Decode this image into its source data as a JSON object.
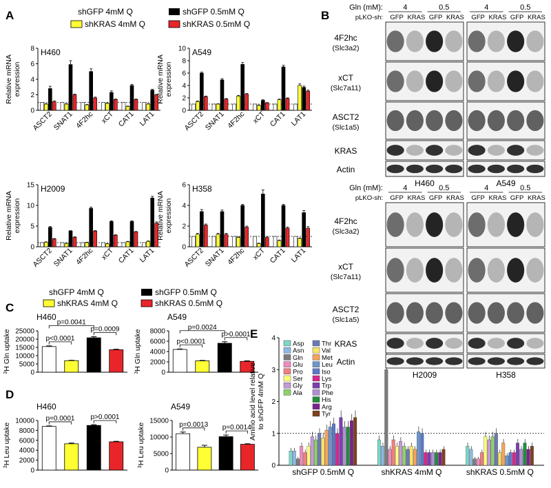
{
  "panels": {
    "A": {
      "label": "A",
      "legend": [
        "shGFP 4mM Q",
        "shGFP 0.5mM Q",
        "shKRAS 4mM Q",
        "shKRAS 0.5mM Q"
      ],
      "ylabel": [
        "Relative mRNA",
        "expression"
      ],
      "genes": [
        "ASCT2",
        "SNAT1",
        "4F2hc",
        "xCT",
        "CAT1",
        "LAT1"
      ]
    },
    "B": {
      "label": "B"
    },
    "C": {
      "label": "C",
      "legend": [
        "shGFP 4mM Q",
        "shGFP 0.5mM Q",
        "shKRAS 4mM Q",
        "shKRAS 0.5mM Q"
      ],
      "ylabel_sup": "3",
      "ylabel": "H Gln uptake"
    },
    "D": {
      "label": "D",
      "ylabel_sup": "3",
      "ylabel": "H Leu uptake"
    },
    "E": {
      "label": "E",
      "ylabel": [
        "Amino acid level relative",
        "to shGFP 4mM Q"
      ],
      "groups": [
        "shGFP 0.5mM Q",
        "shKRAS 4mM Q",
        "shKRAS 0.5mM Q"
      ]
    }
  },
  "chart_data": [
    {
      "type": "bar",
      "cell": "H460",
      "categories": [
        "ASCT2",
        "SNAT1",
        "4F2hc",
        "xCT",
        "CAT1",
        "LAT1"
      ],
      "series": [
        {
          "name": "shGFP 4mM Q",
          "values": [
            1,
            1,
            1,
            1,
            1,
            1
          ]
        },
        {
          "name": "shKRAS 4mM Q",
          "values": [
            0.8,
            0.8,
            0.7,
            0.9,
            0.5,
            0.8
          ]
        },
        {
          "name": "shGFP 0.5mM Q",
          "values": [
            2.8,
            5.9,
            5.0,
            2.3,
            3.2,
            2.6
          ]
        },
        {
          "name": "shKRAS 0.5mM Q",
          "values": [
            1.1,
            2.0,
            1.6,
            1.4,
            1.4,
            2.0
          ]
        }
      ],
      "errors": [
        [
          0,
          0.05,
          0.3,
          0.1
        ],
        [
          0,
          0.05,
          0.5,
          0.1
        ],
        [
          0,
          0.05,
          0.35,
          0.1
        ],
        [
          0,
          0.05,
          0.2,
          0.05
        ],
        [
          0,
          0.05,
          0.15,
          0.05
        ],
        [
          0,
          0.05,
          0.1,
          0.05
        ]
      ],
      "ylim": [
        0,
        8
      ],
      "yticks": [
        0,
        2,
        4,
        6,
        8
      ],
      "dashed": 1
    },
    {
      "type": "bar",
      "cell": "A549",
      "categories": [
        "ASCT2",
        "SNAT1",
        "4F2hc",
        "xCT",
        "CAT1",
        "LAT1"
      ],
      "series": [
        {
          "name": "shGFP 4mM Q",
          "values": [
            1,
            1,
            1,
            1,
            1,
            1
          ]
        },
        {
          "name": "shKRAS 4mM Q",
          "values": [
            1.4,
            1.0,
            2.3,
            0.8,
            1.7,
            4.0
          ]
        },
        {
          "name": "shGFP 0.5mM Q",
          "values": [
            6.0,
            4.9,
            7.4,
            1.6,
            7.0,
            3.7
          ]
        },
        {
          "name": "shKRAS 0.5mM Q",
          "values": [
            2.2,
            1.8,
            2.6,
            1.2,
            1.9,
            3.1
          ]
        }
      ],
      "errors": [
        [
          0,
          0.1,
          0.15,
          0.1
        ],
        [
          0,
          0.05,
          0.2,
          0.1
        ],
        [
          0,
          0.1,
          0.3,
          0.1
        ],
        [
          0,
          0.05,
          0.1,
          0.05
        ],
        [
          0,
          0.1,
          0.25,
          0.1
        ],
        [
          0,
          0.25,
          0.2,
          0.15
        ]
      ],
      "ylim": [
        0,
        10
      ],
      "yticks": [
        0,
        2,
        4,
        6,
        8,
        10
      ],
      "dashed": 1
    },
    {
      "type": "bar",
      "cell": "H2009",
      "categories": [
        "ASCT2",
        "SNAT1",
        "4F2hc",
        "xCT",
        "CAT1",
        "LAT1"
      ],
      "series": [
        {
          "name": "shGFP 4mM Q",
          "values": [
            1,
            1,
            1,
            1,
            1,
            1
          ]
        },
        {
          "name": "shKRAS 4mM Q",
          "values": [
            1.1,
            0.8,
            1.0,
            0.7,
            1.2,
            1.3
          ]
        },
        {
          "name": "shGFP 0.5mM Q",
          "values": [
            4.7,
            3.8,
            9.3,
            6.1,
            6.1,
            11.8
          ]
        },
        {
          "name": "shKRAS 0.5mM Q",
          "values": [
            1.9,
            2.3,
            3.8,
            2.8,
            3.6,
            5.7
          ]
        }
      ],
      "errors": [
        [
          0,
          0.1,
          0.2,
          0.1
        ],
        [
          0,
          0.05,
          0.1,
          0.1
        ],
        [
          0,
          0.1,
          0.3,
          0.1
        ],
        [
          0,
          0.05,
          0.2,
          0.1
        ],
        [
          0,
          0.1,
          0.2,
          0.1
        ],
        [
          0,
          0.1,
          0.4,
          0.3
        ]
      ],
      "ylim": [
        0,
        15
      ],
      "yticks": [
        0,
        5,
        10,
        15
      ],
      "dashed": 1
    },
    {
      "type": "bar",
      "cell": "H358",
      "categories": [
        "ASCT2",
        "SNAT1",
        "4F2hc",
        "xCT",
        "CAT1",
        "LAT1"
      ],
      "series": [
        {
          "name": "shGFP 4mM Q",
          "values": [
            1,
            1,
            1,
            1,
            1,
            1
          ]
        },
        {
          "name": "shKRAS 4mM Q",
          "values": [
            1.2,
            1.2,
            0.9,
            0.3,
            0.6,
            0.8
          ]
        },
        {
          "name": "shGFP 0.5mM Q",
          "values": [
            3.4,
            3.4,
            4.0,
            5.1,
            4.0,
            3.3
          ]
        },
        {
          "name": "shKRAS 0.5mM Q",
          "values": [
            2.1,
            1.2,
            1.9,
            0.9,
            1.8,
            1.8
          ]
        }
      ],
      "errors": [
        [
          0,
          0.1,
          0.2,
          0.1
        ],
        [
          0,
          0.1,
          0.15,
          0.1
        ],
        [
          0,
          0.05,
          0.1,
          0.1
        ],
        [
          0,
          0.05,
          0.4,
          0.1
        ],
        [
          0,
          0.05,
          0.1,
          0.1
        ],
        [
          0,
          0.05,
          0.2,
          0.15
        ]
      ],
      "ylim": [
        0,
        6
      ],
      "yticks": [
        0,
        2,
        4,
        6
      ],
      "dashed": 1
    },
    {
      "type": "bar",
      "cell": "H460",
      "categories": [
        "shGFP 4mM Q",
        "shKRAS 4mM Q",
        "shGFP 0.5mM Q",
        "shKRAS 0.5mM Q"
      ],
      "values": [
        15500,
        7000,
        20800,
        13600
      ],
      "errors": [
        400,
        200,
        700,
        300
      ],
      "ylim": [
        0,
        25000
      ],
      "yticks": [
        0,
        5000,
        10000,
        15000,
        20000,
        25000
      ],
      "pvalues": [
        {
          "a": 0,
          "b": 1,
          "label": "p<0.0001"
        },
        {
          "a": 0,
          "b": 2,
          "label": "p=0.0041"
        },
        {
          "a": 2,
          "b": 3,
          "label": "p=0.0009"
        }
      ]
    },
    {
      "type": "bar",
      "cell": "A549",
      "categories": [
        "shGFP 4mM Q",
        "shKRAS 4mM Q",
        "shGFP 0.5mM Q",
        "shKRAS 0.5mM Q"
      ],
      "values": [
        4400,
        2200,
        5600,
        2100
      ],
      "errors": [
        100,
        80,
        300,
        100
      ],
      "ylim": [
        0,
        8000
      ],
      "yticks": [
        0,
        2000,
        4000,
        6000,
        8000
      ],
      "pvalues": [
        {
          "a": 0,
          "b": 1,
          "label": "p<0.0001"
        },
        {
          "a": 0,
          "b": 2,
          "label": "p=0.0024"
        },
        {
          "a": 2,
          "b": 3,
          "label": "p>0.0001"
        }
      ]
    },
    {
      "type": "bar",
      "cell": "H460",
      "categories": [
        "shGFP 4mM Q",
        "shKRAS 4mM Q",
        "shGFP 0.5mM Q",
        "shKRAS 0.5mM Q"
      ],
      "values": [
        8800,
        5300,
        9000,
        5700
      ],
      "errors": [
        100,
        150,
        150,
        100
      ],
      "ylim": [
        0,
        10000
      ],
      "yticks": [
        0,
        2000,
        4000,
        6000,
        8000,
        10000
      ],
      "pvalues": [
        {
          "a": 0,
          "b": 1,
          "label": "p=0.0001"
        },
        {
          "a": 2,
          "b": 3,
          "label": "p>0.0001"
        }
      ]
    },
    {
      "type": "bar",
      "cell": "A549",
      "categories": [
        "shGFP 4mM Q",
        "shKRAS 4mM Q",
        "shGFP 0.5mM Q",
        "shKRAS 0.5mM Q"
      ],
      "values": [
        11000,
        6900,
        10100,
        7800
      ],
      "errors": [
        500,
        600,
        500,
        150
      ],
      "ylim": [
        0,
        15000
      ],
      "yticks": [
        0,
        5000,
        10000,
        15000
      ],
      "pvalues": [
        {
          "a": 0,
          "b": 1,
          "label": "p=0.0013"
        },
        {
          "a": 2,
          "b": 3,
          "label": "p=0.0014"
        }
      ]
    },
    {
      "type": "bar",
      "amino_acids": [
        "Asp",
        "Asn",
        "Gln",
        "Glu",
        "Pro",
        "Ser",
        "Gly",
        "Ala",
        "Thr",
        "Val",
        "Met",
        "Leu",
        "Iso",
        "Lys",
        "Trp",
        "Phe",
        "His",
        "Arg",
        "Tyr"
      ],
      "colors": [
        "#7dd6c6",
        "#8eb8e4",
        "#7c7c7c",
        "#f08bbd",
        "#f07f7f",
        "#ffff7a",
        "#c49ad6",
        "#8ed16a",
        "#6c7ab5",
        "#f7e46a",
        "#f5a35a",
        "#6e96cc",
        "#5c78c8",
        "#d8268a",
        "#7a3fb0",
        "#b090d4",
        "#208e3a",
        "#7c2090",
        "#804020"
      ],
      "groups": [
        "shGFP 0.5mM Q",
        "shKRAS 4mM Q",
        "shKRAS 0.5mM Q"
      ],
      "values": [
        [
          0.45,
          0.45,
          0.2,
          0.6,
          0.4,
          0.6,
          0.9,
          0.8,
          1.0,
          0.85,
          1.1,
          1.2,
          1.3,
          1.0,
          1.5,
          1.2,
          1.2,
          1.4,
          1.5
        ],
        [
          0.8,
          0.6,
          3.0,
          0.5,
          0.8,
          0.6,
          0.75,
          0.6,
          0.5,
          0.6,
          0.5,
          1.05,
          1.0,
          0.4,
          0.4,
          0.4,
          0.4,
          0.4,
          0.5
        ],
        [
          0.6,
          0.5,
          0.2,
          0.2,
          0.4,
          0.9,
          0.8,
          0.9,
          1.0,
          0.4,
          0.7,
          0.3,
          0.4,
          0.4,
          0.7,
          0.5,
          0.7,
          0.5,
          0.6
        ]
      ],
      "ylim": [
        0,
        4
      ],
      "yticks": [
        0,
        1,
        2,
        3,
        4
      ],
      "dashed": 1
    }
  ],
  "blots": {
    "top": {
      "header_label": "Gln (mM):",
      "sh_label": "pLKO-sh:",
      "conc": [
        "4",
        "0.5",
        "4",
        "0.5"
      ],
      "lanes": [
        "GFP",
        "KRAS",
        "GFP",
        "KRAS",
        "GFP",
        "KRAS",
        "GFP",
        "KRAS"
      ],
      "cells": [
        "H460",
        "A549"
      ],
      "rows": [
        {
          "name": "4F2hc",
          "sub": "(Slc3a2)"
        },
        {
          "name": "xCT",
          "sub": "(Slc7a11)"
        },
        {
          "name": "ASCT2",
          "sub": "(Slc1a5)"
        },
        {
          "name": "KRAS",
          "sub": ""
        },
        {
          "name": "Actin",
          "sub": ""
        }
      ]
    },
    "bottom": {
      "header_label": "Gln (mM):",
      "sh_label": "pLKO-sh:",
      "conc": [
        "4",
        "0.5",
        "4",
        "0.5"
      ],
      "lanes": [
        "GFP",
        "KRAS",
        "GFP",
        "KRAS",
        "GFP",
        "KRAS",
        "GFP",
        "KRAS"
      ],
      "cells": [
        "H2009",
        "H358"
      ],
      "rows": [
        {
          "name": "4F2hc",
          "sub": "(Slc3a2)"
        },
        {
          "name": "xCT",
          "sub": "(Slc7a11)"
        },
        {
          "name": "ASCT2",
          "sub": "(Slc1a5)"
        },
        {
          "name": "KRAS",
          "sub": ""
        },
        {
          "name": "Actin",
          "sub": ""
        }
      ]
    }
  },
  "colors": {
    "shGFP4": "#ffffff",
    "shKRAS4": "#ffff33",
    "shGFP05": "#000000",
    "shKRAS05": "#e8262a"
  }
}
